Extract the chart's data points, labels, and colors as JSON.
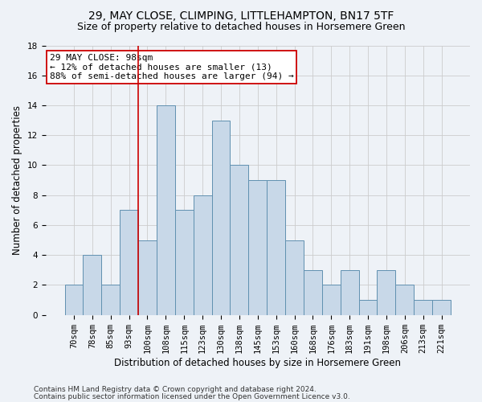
{
  "title1": "29, MAY CLOSE, CLIMPING, LITTLEHAMPTON, BN17 5TF",
  "title2": "Size of property relative to detached houses in Horsemere Green",
  "xlabel": "Distribution of detached houses by size in Horsemere Green",
  "ylabel": "Number of detached properties",
  "footnote1": "Contains HM Land Registry data © Crown copyright and database right 2024.",
  "footnote2": "Contains public sector information licensed under the Open Government Licence v3.0.",
  "categories": [
    "70sqm",
    "78sqm",
    "85sqm",
    "93sqm",
    "100sqm",
    "108sqm",
    "115sqm",
    "123sqm",
    "130sqm",
    "138sqm",
    "145sqm",
    "153sqm",
    "160sqm",
    "168sqm",
    "176sqm",
    "183sqm",
    "191sqm",
    "198sqm",
    "206sqm",
    "213sqm",
    "221sqm"
  ],
  "values": [
    2,
    4,
    2,
    7,
    5,
    14,
    7,
    8,
    13,
    10,
    9,
    9,
    5,
    3,
    2,
    3,
    1,
    3,
    2,
    1,
    1
  ],
  "bar_color": "#c8d8e8",
  "bar_edge_color": "#6090b0",
  "bar_width": 1.0,
  "vline_color": "#cc0000",
  "annotation_text": "29 MAY CLOSE: 98sqm\n← 12% of detached houses are smaller (13)\n88% of semi-detached houses are larger (94) →",
  "annotation_box_color": "#ffffff",
  "annotation_box_edge": "#cc0000",
  "ylim": [
    0,
    18
  ],
  "yticks": [
    0,
    2,
    4,
    6,
    8,
    10,
    12,
    14,
    16,
    18
  ],
  "bg_color": "#eef2f7",
  "grid_color": "#cccccc",
  "title1_fontsize": 10,
  "title2_fontsize": 9,
  "xlabel_fontsize": 8.5,
  "ylabel_fontsize": 8.5,
  "tick_fontsize": 7.5,
  "annotation_fontsize": 8
}
